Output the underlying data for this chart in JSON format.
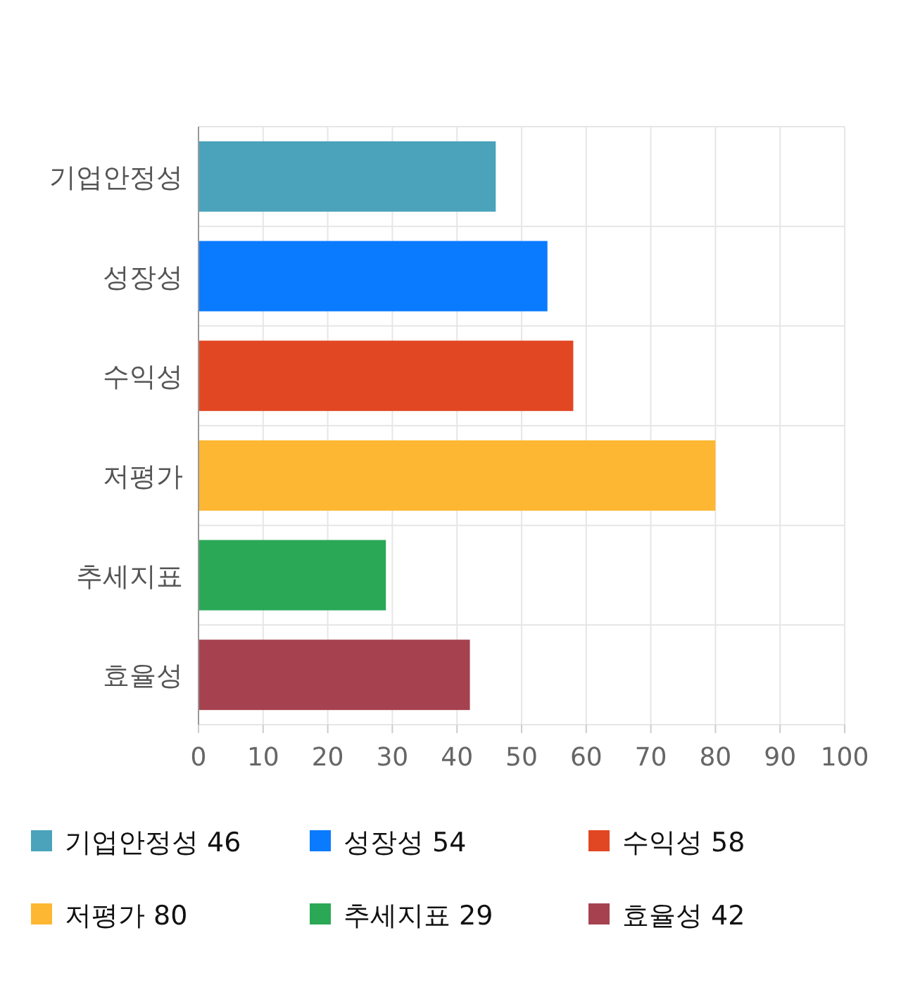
{
  "chart_data": {
    "type": "bar",
    "orientation": "horizontal",
    "stacked": true,
    "categories": [
      "기업안정성",
      "성장성",
      "수익성",
      "저평가",
      "추세지표",
      "효율성"
    ],
    "series": [
      {
        "name": "기업안정성 46",
        "color": "#4aa3bb",
        "values": [
          46,
          null,
          null,
          null,
          null,
          null
        ]
      },
      {
        "name": "성장성 54",
        "color": "#0a7bff",
        "values": [
          null,
          54,
          null,
          null,
          null,
          null
        ]
      },
      {
        "name": "수익성 58",
        "color": "#e24723",
        "values": [
          null,
          null,
          58,
          null,
          null,
          null
        ]
      },
      {
        "name": "저평가 80",
        "color": "#fdb733",
        "values": [
          null,
          null,
          null,
          80,
          null,
          null
        ]
      },
      {
        "name": "추세지표 29",
        "color": "#2aa856",
        "values": [
          null,
          null,
          null,
          null,
          29,
          null
        ]
      },
      {
        "name": "효율성 42",
        "color": "#a6424f",
        "values": [
          null,
          null,
          null,
          null,
          null,
          42
        ]
      }
    ],
    "xlim": [
      0,
      100
    ],
    "xticks": [
      0,
      10,
      20,
      30,
      40,
      50,
      60,
      70,
      80,
      90,
      100
    ],
    "grid": true,
    "legend": "bottom"
  }
}
